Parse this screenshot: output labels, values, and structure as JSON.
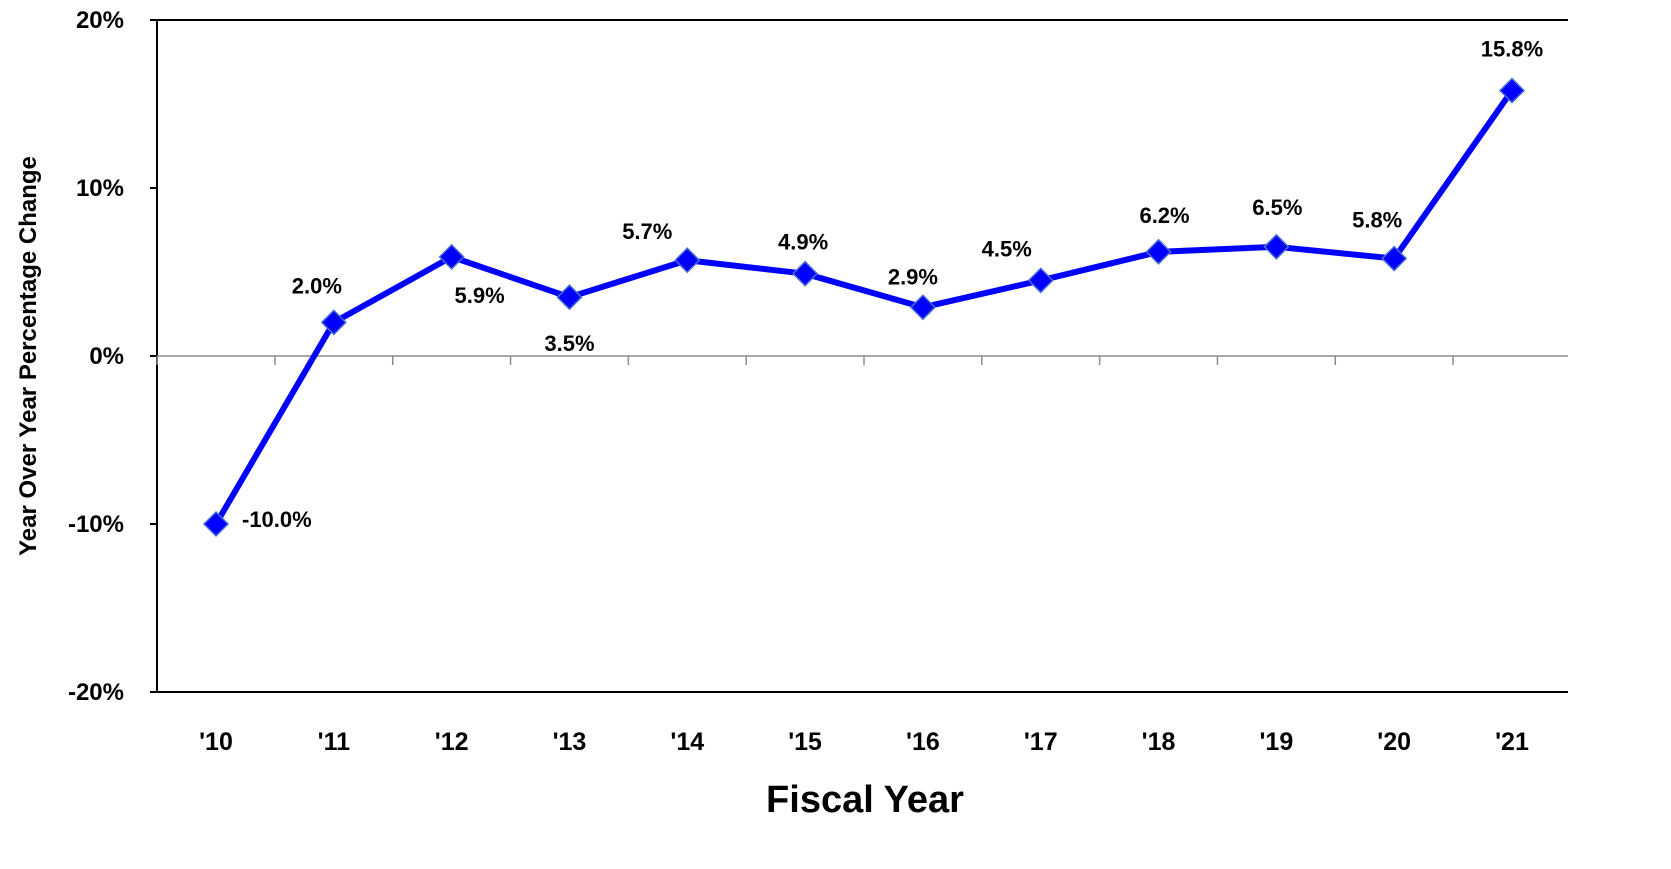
{
  "chart_data": {
    "type": "line",
    "title": "",
    "xlabel": "Fiscal Year",
    "ylabel": "Year Over Year Percentage Change",
    "ylim": [
      -20,
      20
    ],
    "yticks": [
      -20,
      -10,
      0,
      10,
      20
    ],
    "ytick_labels": [
      "-20%",
      "-10%",
      "0%",
      "10%",
      "20%"
    ],
    "grid": false,
    "legend": "none",
    "categories": [
      "'10",
      "'11",
      "'12",
      "'13",
      "'14",
      "'15",
      "'16",
      "'17",
      "'18",
      "'19",
      "'20",
      "'21"
    ],
    "series": [
      {
        "color": "#0000ff",
        "marker": "diamond",
        "values": [
          -10.0,
          2.0,
          5.9,
          3.5,
          5.7,
          4.9,
          2.9,
          4.5,
          6.2,
          6.5,
          5.8,
          15.8
        ],
        "labels": [
          "-10.0%",
          "2.0%",
          "5.9%",
          "3.5%",
          "5.7%",
          "4.9%",
          "2.9%",
          "4.5%",
          "6.2%",
          "6.5%",
          "5.8%",
          "15.8%"
        ]
      }
    ]
  }
}
